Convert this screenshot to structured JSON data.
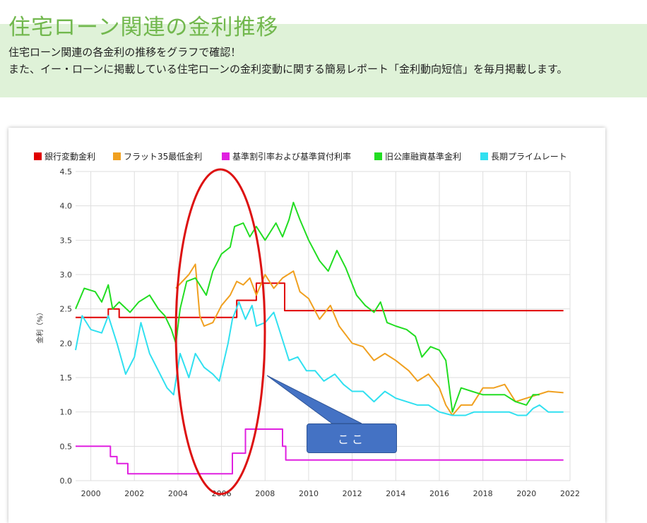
{
  "page": {
    "title": "住宅ローン関連の金利推移",
    "desc1": "住宅ローン関連の各金利の推移をグラフで確認！",
    "desc2": "また、イー・ローンに掲載している住宅ローンの金利変動に関する簡易レポート「金利動向短信」を毎月掲載します。"
  },
  "annotation": {
    "callout_text": "ここ",
    "ellipse_color": "#dd1111",
    "callout_color": "#4472c4"
  },
  "chart_data": {
    "type": "line",
    "ylabel": "金利（%）",
    "xlim": [
      1999.3,
      2022
    ],
    "ylim": [
      0,
      4.5
    ],
    "x_ticks": [
      "2000",
      "2002",
      "2004",
      "2006",
      "2008",
      "2010",
      "2012",
      "2014",
      "2016",
      "2018",
      "2020",
      "2022"
    ],
    "y_ticks": [
      "0.0",
      "0.5",
      "1.0",
      "1.5",
      "2.0",
      "2.5",
      "3.0",
      "3.5",
      "4.0",
      "4.5"
    ],
    "grid": true,
    "legend_position": "top",
    "series": [
      {
        "name": "銀行変動金利",
        "color": "#e00000",
        "step": true,
        "points": [
          [
            1999.3,
            2.375
          ],
          [
            2000.8,
            2.5
          ],
          [
            2001.3,
            2.375
          ],
          [
            2006.7,
            2.625
          ],
          [
            2007.6,
            2.875
          ],
          [
            2008.9,
            2.475
          ],
          [
            2021.7,
            2.475
          ]
        ]
      },
      {
        "name": "フラット35最低金利",
        "color": "#f0a020",
        "points": [
          [
            2003.9,
            2.8
          ],
          [
            2004.5,
            3.0
          ],
          [
            2004.8,
            3.15
          ],
          [
            2005.0,
            2.4
          ],
          [
            2005.2,
            2.25
          ],
          [
            2005.6,
            2.3
          ],
          [
            2006.0,
            2.55
          ],
          [
            2006.4,
            2.7
          ],
          [
            2006.7,
            2.9
          ],
          [
            2007.0,
            2.85
          ],
          [
            2007.3,
            2.95
          ],
          [
            2007.6,
            2.7
          ],
          [
            2008.0,
            3.0
          ],
          [
            2008.4,
            2.8
          ],
          [
            2008.8,
            2.95
          ],
          [
            2009.3,
            3.05
          ],
          [
            2009.6,
            2.75
          ],
          [
            2010.0,
            2.65
          ],
          [
            2010.5,
            2.35
          ],
          [
            2011.0,
            2.55
          ],
          [
            2011.4,
            2.25
          ],
          [
            2012.0,
            2.0
          ],
          [
            2012.5,
            1.95
          ],
          [
            2013.0,
            1.75
          ],
          [
            2013.5,
            1.85
          ],
          [
            2014.0,
            1.75
          ],
          [
            2014.6,
            1.6
          ],
          [
            2015.0,
            1.45
          ],
          [
            2015.5,
            1.55
          ],
          [
            2016.0,
            1.35
          ],
          [
            2016.3,
            1.1
          ],
          [
            2016.6,
            0.95
          ],
          [
            2017.0,
            1.1
          ],
          [
            2017.5,
            1.1
          ],
          [
            2018.0,
            1.35
          ],
          [
            2018.5,
            1.35
          ],
          [
            2019.0,
            1.4
          ],
          [
            2019.5,
            1.15
          ],
          [
            2020.0,
            1.2
          ],
          [
            2020.5,
            1.25
          ],
          [
            2021.0,
            1.3
          ],
          [
            2021.7,
            1.28
          ]
        ]
      },
      {
        "name": "基準割引率および基準貸付利率",
        "color": "#e020e0",
        "step": true,
        "points": [
          [
            1999.3,
            0.5
          ],
          [
            2000.9,
            0.35
          ],
          [
            2001.2,
            0.25
          ],
          [
            2001.7,
            0.1
          ],
          [
            2006.5,
            0.4
          ],
          [
            2007.1,
            0.75
          ],
          [
            2008.8,
            0.5
          ],
          [
            2008.95,
            0.3
          ],
          [
            2021.7,
            0.3
          ]
        ]
      },
      {
        "name": "旧公庫融資基準金利",
        "color": "#22dd22",
        "points": [
          [
            1999.3,
            2.5
          ],
          [
            1999.7,
            2.8
          ],
          [
            2000.2,
            2.75
          ],
          [
            2000.5,
            2.6
          ],
          [
            2000.8,
            2.85
          ],
          [
            2001.0,
            2.5
          ],
          [
            2001.3,
            2.6
          ],
          [
            2001.8,
            2.45
          ],
          [
            2002.2,
            2.6
          ],
          [
            2002.7,
            2.7
          ],
          [
            2003.1,
            2.5
          ],
          [
            2003.4,
            2.4
          ],
          [
            2003.7,
            2.2
          ],
          [
            2003.9,
            2.0
          ],
          [
            2004.1,
            2.5
          ],
          [
            2004.4,
            2.9
          ],
          [
            2004.8,
            2.95
          ],
          [
            2005.3,
            2.7
          ],
          [
            2005.6,
            3.05
          ],
          [
            2006.0,
            3.3
          ],
          [
            2006.4,
            3.4
          ],
          [
            2006.6,
            3.7
          ],
          [
            2007.0,
            3.75
          ],
          [
            2007.3,
            3.55
          ],
          [
            2007.6,
            3.7
          ],
          [
            2008.0,
            3.5
          ],
          [
            2008.5,
            3.75
          ],
          [
            2008.8,
            3.55
          ],
          [
            2009.1,
            3.8
          ],
          [
            2009.3,
            4.05
          ],
          [
            2009.6,
            3.8
          ],
          [
            2010.0,
            3.5
          ],
          [
            2010.5,
            3.2
          ],
          [
            2010.9,
            3.05
          ],
          [
            2011.3,
            3.35
          ],
          [
            2011.7,
            3.1
          ],
          [
            2012.2,
            2.7
          ],
          [
            2012.6,
            2.55
          ],
          [
            2013.0,
            2.45
          ],
          [
            2013.3,
            2.6
          ],
          [
            2013.6,
            2.3
          ],
          [
            2014.0,
            2.25
          ],
          [
            2014.5,
            2.2
          ],
          [
            2014.9,
            2.1
          ],
          [
            2015.2,
            1.8
          ],
          [
            2015.6,
            1.95
          ],
          [
            2016.0,
            1.9
          ],
          [
            2016.3,
            1.75
          ],
          [
            2016.6,
            1.0
          ],
          [
            2017.0,
            1.35
          ],
          [
            2017.5,
            1.3
          ],
          [
            2018.0,
            1.25
          ],
          [
            2018.5,
            1.25
          ],
          [
            2019.0,
            1.25
          ],
          [
            2019.5,
            1.15
          ],
          [
            2020.0,
            1.1
          ],
          [
            2020.3,
            1.25
          ],
          [
            2020.6,
            1.25
          ]
        ]
      },
      {
        "name": "長期プライムレート",
        "color": "#30e0f0",
        "points": [
          [
            1999.3,
            1.9
          ],
          [
            1999.6,
            2.4
          ],
          [
            2000.0,
            2.2
          ],
          [
            2000.5,
            2.15
          ],
          [
            2000.8,
            2.4
          ],
          [
            2001.2,
            2.0
          ],
          [
            2001.6,
            1.55
          ],
          [
            2002.0,
            1.8
          ],
          [
            2002.3,
            2.3
          ],
          [
            2002.7,
            1.85
          ],
          [
            2003.1,
            1.6
          ],
          [
            2003.5,
            1.35
          ],
          [
            2003.8,
            1.25
          ],
          [
            2004.1,
            1.85
          ],
          [
            2004.5,
            1.5
          ],
          [
            2004.8,
            1.85
          ],
          [
            2005.2,
            1.65
          ],
          [
            2005.6,
            1.55
          ],
          [
            2005.9,
            1.45
          ],
          [
            2006.3,
            2.0
          ],
          [
            2006.5,
            2.35
          ],
          [
            2006.8,
            2.6
          ],
          [
            2007.1,
            2.35
          ],
          [
            2007.4,
            2.55
          ],
          [
            2007.6,
            2.25
          ],
          [
            2008.0,
            2.3
          ],
          [
            2008.4,
            2.45
          ],
          [
            2008.8,
            2.05
          ],
          [
            2009.1,
            1.75
          ],
          [
            2009.5,
            1.8
          ],
          [
            2009.9,
            1.6
          ],
          [
            2010.3,
            1.6
          ],
          [
            2010.7,
            1.45
          ],
          [
            2011.2,
            1.55
          ],
          [
            2011.6,
            1.4
          ],
          [
            2012.0,
            1.3
          ],
          [
            2012.5,
            1.3
          ],
          [
            2013.0,
            1.15
          ],
          [
            2013.5,
            1.3
          ],
          [
            2014.0,
            1.2
          ],
          [
            2014.5,
            1.15
          ],
          [
            2015.0,
            1.1
          ],
          [
            2015.5,
            1.1
          ],
          [
            2016.0,
            1.0
          ],
          [
            2016.6,
            0.95
          ],
          [
            2017.2,
            0.95
          ],
          [
            2017.6,
            1.0
          ],
          [
            2018.0,
            1.0
          ],
          [
            2018.6,
            1.0
          ],
          [
            2019.2,
            1.0
          ],
          [
            2019.6,
            0.95
          ],
          [
            2020.0,
            0.95
          ],
          [
            2020.3,
            1.05
          ],
          [
            2020.6,
            1.1
          ],
          [
            2021.0,
            1.0
          ],
          [
            2021.7,
            1.0
          ]
        ]
      }
    ]
  }
}
